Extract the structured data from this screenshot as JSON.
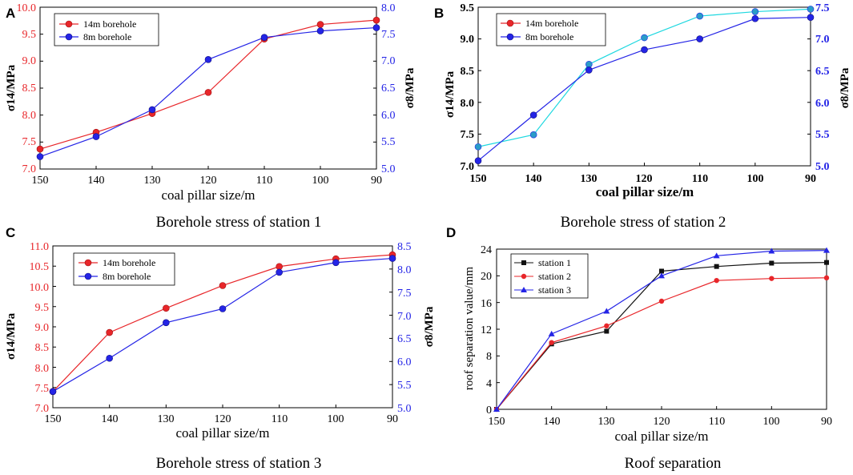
{
  "colors": {
    "red": "#e8262a",
    "blue": "#2424e6",
    "cyan": "#1ed8e0",
    "black": "#111111",
    "axis_left_red": "#e8262a",
    "axis_right_blue": "#2424e6"
  },
  "chart_data": [
    {
      "panel": "A",
      "type": "line",
      "caption": "Borehole stress of station 1",
      "categories": [
        "150",
        "140",
        "130",
        "120",
        "110",
        "100",
        "90"
      ],
      "xlabel": "coal pillar size/m",
      "ylabel_left": "σ14/MPa",
      "ylabel_right": "σ8/MPa",
      "ylim_left": [
        7.0,
        10.0
      ],
      "ylim_right": [
        5.0,
        8.0
      ],
      "yticks_left": [
        "7.0",
        "7.5",
        "8.0",
        "8.5",
        "9.0",
        "9.5",
        "10.0"
      ],
      "yticks_right": [
        "5.0",
        "5.5",
        "6.0",
        "6.5",
        "7.0",
        "7.5",
        "8.0"
      ],
      "legend_position": "top-left",
      "series": [
        {
          "name": "14m borehole",
          "axis": "left",
          "color": "#e8262a",
          "values": [
            7.37,
            7.68,
            8.03,
            8.42,
            9.41,
            9.68,
            9.76
          ]
        },
        {
          "name": "8m borehole",
          "axis": "right",
          "color": "#2424e6",
          "values": [
            5.23,
            5.6,
            6.1,
            7.03,
            7.44,
            7.56,
            7.62
          ]
        }
      ]
    },
    {
      "panel": "B",
      "type": "line",
      "caption": "Borehole stress of station 2",
      "categories": [
        "150",
        "140",
        "130",
        "120",
        "110",
        "100",
        "90"
      ],
      "xlabel": "coal pillar size/m",
      "ylabel_left": "σ14/MPa",
      "ylabel_right": "σ8/MPa",
      "ylim_left": [
        7.0,
        9.5
      ],
      "ylim_right": [
        5.0,
        7.5
      ],
      "yticks_left": [
        "7.0",
        "7.5",
        "8.0",
        "8.5",
        "9.0",
        "9.5"
      ],
      "yticks_right": [
        "5.0",
        "5.5",
        "6.0",
        "6.5",
        "7.0",
        "7.5"
      ],
      "legend_position": "top-left",
      "series": [
        {
          "name": "14m borehole",
          "axis": "left",
          "color": "#1ed8e0",
          "values": [
            7.3,
            7.49,
            8.6,
            9.02,
            9.36,
            9.43,
            9.47
          ]
        },
        {
          "name": "8m borehole",
          "axis": "right",
          "color": "#2424e6",
          "values": [
            5.08,
            5.8,
            6.51,
            6.83,
            7.0,
            7.32,
            7.34
          ]
        }
      ]
    },
    {
      "panel": "C",
      "type": "line",
      "caption": "Borehole stress of station 3",
      "categories": [
        "150",
        "140",
        "130",
        "120",
        "110",
        "100",
        "90"
      ],
      "xlabel": "coal pillar size/m",
      "ylabel_left": "σ14/MPa",
      "ylabel_right": "σ8/MPa",
      "ylim_left": [
        7.0,
        11.0
      ],
      "ylim_right": [
        5.0,
        8.5
      ],
      "yticks_left": [
        "7.0",
        "7.5",
        "8.0",
        "8.5",
        "9.0",
        "9.5",
        "10.0",
        "10.5",
        "11.0"
      ],
      "yticks_right": [
        "5.0",
        "5.5",
        "6.0",
        "6.5",
        "7.0",
        "7.5",
        "8.0",
        "8.5"
      ],
      "legend_position": "top-left",
      "series": [
        {
          "name": "14m borehole",
          "axis": "left",
          "color": "#e8262a",
          "values": [
            7.4,
            8.86,
            9.46,
            10.02,
            10.49,
            10.68,
            10.78
          ]
        },
        {
          "name": "8m borehole",
          "axis": "right",
          "color": "#2424e6",
          "values": [
            5.35,
            6.07,
            6.84,
            7.14,
            7.93,
            8.14,
            8.23
          ]
        }
      ]
    },
    {
      "panel": "D",
      "type": "line",
      "caption": "Roof separation",
      "categories": [
        "150",
        "140",
        "130",
        "120",
        "110",
        "100",
        "90"
      ],
      "xlabel": "coal pillar size/m",
      "ylabel": "roof separation value/mm",
      "ylim": [
        0,
        24
      ],
      "yticks": [
        "0",
        "4",
        "8",
        "12",
        "16",
        "20",
        "24"
      ],
      "legend_position": "top-left",
      "series": [
        {
          "name": "station 1",
          "color": "#111111",
          "marker": "square",
          "values": [
            0,
            9.8,
            11.7,
            20.7,
            21.4,
            21.9,
            22.0
          ]
        },
        {
          "name": "station 2",
          "color": "#e8262a",
          "marker": "circle",
          "values": [
            0,
            10.0,
            12.5,
            16.2,
            19.3,
            19.6,
            19.7
          ]
        },
        {
          "name": "station 3",
          "color": "#2424e6",
          "marker": "triangle",
          "values": [
            0,
            11.3,
            14.7,
            20.0,
            23.0,
            23.7,
            23.8
          ]
        }
      ]
    }
  ]
}
